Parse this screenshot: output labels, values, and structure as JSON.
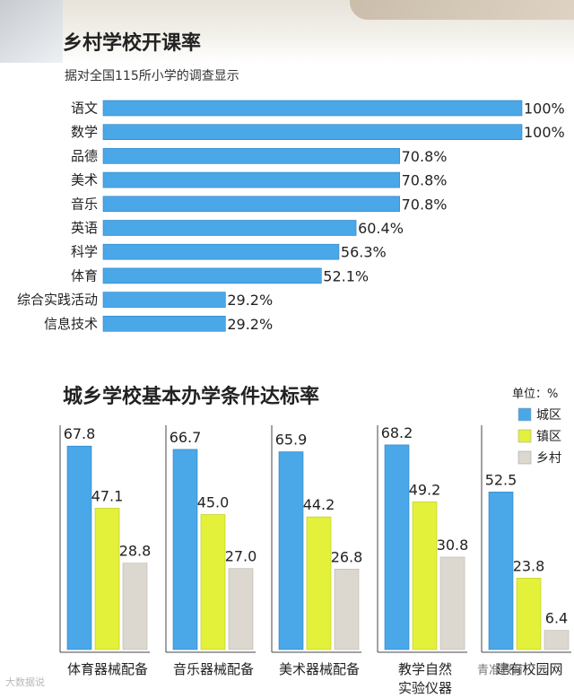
{
  "section1": {
    "title": "乡村学校开课率",
    "subtitle": "据对全国115所小学的调查显示"
  },
  "section2": {
    "title": "城乡学校基本办学条件达标率",
    "unit_label": "单位：%"
  },
  "watermarks": {
    "left": "大数据说",
    "right": "青准教育"
  },
  "chart_data": [
    {
      "type": "bar",
      "orientation": "horizontal",
      "title": "乡村学校开课率",
      "subtitle": "据对全国115所小学的调查显示",
      "categories": [
        "语文",
        "数学",
        "品德",
        "美术",
        "音乐",
        "英语",
        "科学",
        "体育",
        "综合实践活动",
        "信息技术"
      ],
      "values": [
        100,
        100,
        70.8,
        70.8,
        70.8,
        60.4,
        56.3,
        52.1,
        29.2,
        29.2
      ],
      "value_labels": [
        "100%",
        "100%",
        "70.8%",
        "70.8%",
        "70.8%",
        "60.4%",
        "56.3%",
        "52.1%",
        "29.2%",
        "29.2%"
      ],
      "xlim": [
        0,
        100
      ],
      "color": "#4aa7e8"
    },
    {
      "type": "bar",
      "orientation": "vertical",
      "title": "城乡学校基本办学条件达标率",
      "unit": "单位：%",
      "categories": [
        [
          "体育器械配备"
        ],
        [
          "音乐器械配备"
        ],
        [
          "美术器械配备"
        ],
        [
          "教学自然",
          "实验仪器"
        ],
        [
          "建有校园网"
        ]
      ],
      "series": [
        {
          "name": "城区",
          "color": "#4aa7e8",
          "values": [
            67.8,
            66.7,
            65.9,
            68.2,
            52.5
          ],
          "labels": [
            "67.8",
            "66.7",
            "65.9",
            "68.2",
            "52.5"
          ]
        },
        {
          "name": "镇区",
          "color": "#e3f13b",
          "values": [
            47.1,
            45.0,
            44.2,
            49.2,
            23.8
          ],
          "labels": [
            "47.1",
            "45.0",
            "44.2",
            "49.2",
            "23.8"
          ]
        },
        {
          "name": "乡村",
          "color": "#dcd7cf",
          "values": [
            28.8,
            27.0,
            26.8,
            30.8,
            6.4
          ],
          "labels": [
            "28.8",
            "27.0",
            "26.8",
            "30.8",
            "6.4"
          ]
        }
      ],
      "ylim": [
        0,
        70
      ],
      "legend": "top-right"
    }
  ]
}
